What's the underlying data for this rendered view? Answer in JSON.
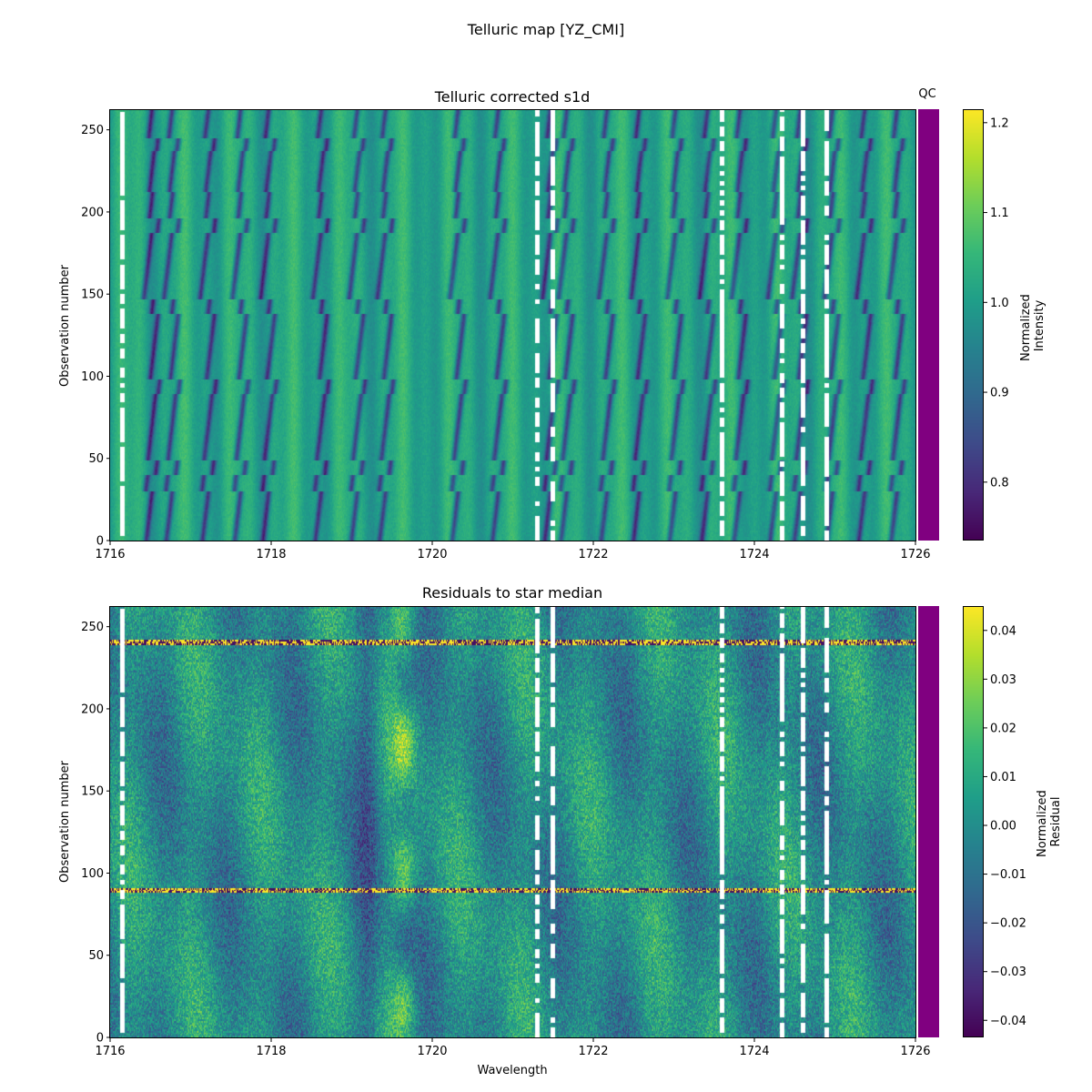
{
  "figure": {
    "suptitle": "Telluric map [YZ_CMI]"
  },
  "chart_data": [
    {
      "type": "heatmap",
      "title": "Telluric corrected s1d",
      "xlabel": "",
      "ylabel": "Observation number",
      "xlim": [
        1716,
        1726
      ],
      "ylim": [
        0,
        262
      ],
      "xticks": [
        1716,
        1718,
        1720,
        1722,
        1724,
        1726
      ],
      "yticks": [
        0,
        50,
        100,
        150,
        200,
        250
      ],
      "colormap": "viridis",
      "colorbar": {
        "label_lines": [
          "Normalized",
          "Intensity"
        ],
        "range": [
          0.735,
          1.215
        ],
        "ticks": [
          0.8,
          0.9,
          1.0,
          1.1,
          1.2
        ],
        "tick_labels": [
          "0.8",
          "0.9",
          "1.0",
          "1.1",
          "1.2"
        ]
      },
      "qc_strip": {
        "label": "QC",
        "color": "#800080"
      },
      "dark_line_wavelengths": [
        1716.45,
        1716.7,
        1717.15,
        1717.55,
        1717.9,
        1718.55,
        1719.0,
        1719.35,
        1720.25,
        1720.75,
        1721.4,
        1721.6,
        1722.1,
        1722.5,
        1722.95,
        1723.35,
        1723.75,
        1724.2,
        1724.5,
        1724.9,
        1725.3,
        1725.7
      ],
      "masked_wavelengths": [
        1716.15,
        1721.3,
        1721.5,
        1723.6,
        1724.35,
        1724.6,
        1724.9
      ],
      "segment_breaks": [
        30,
        40,
        89,
        138,
        187,
        212,
        237
      ]
    },
    {
      "type": "heatmap",
      "title": "Residuals to star median",
      "xlabel": "Wavelength",
      "ylabel": "Observation number",
      "xlim": [
        1716,
        1726
      ],
      "ylim": [
        0,
        262
      ],
      "xticks": [
        1716,
        1718,
        1720,
        1722,
        1724,
        1726
      ],
      "yticks": [
        0,
        50,
        100,
        150,
        200,
        250
      ],
      "colormap": "viridis",
      "colorbar": {
        "label_lines": [
          "Normalized",
          "Residual"
        ],
        "range": [
          -0.0435,
          0.045
        ],
        "ticks": [
          -0.04,
          -0.03,
          -0.02,
          -0.01,
          0.0,
          0.01,
          0.02,
          0.03,
          0.04
        ],
        "tick_labels": [
          "−0.04",
          "−0.03",
          "−0.02",
          "−0.01",
          "0.00",
          "0.01",
          "0.02",
          "0.03",
          "0.04"
        ]
      },
      "qc_strip": {
        "label": "",
        "color": "#800080"
      },
      "masked_wavelengths": [
        1716.15,
        1721.3,
        1721.5,
        1723.6,
        1724.35,
        1724.6,
        1724.9
      ],
      "noisy_rows": [
        89,
        240
      ]
    }
  ]
}
